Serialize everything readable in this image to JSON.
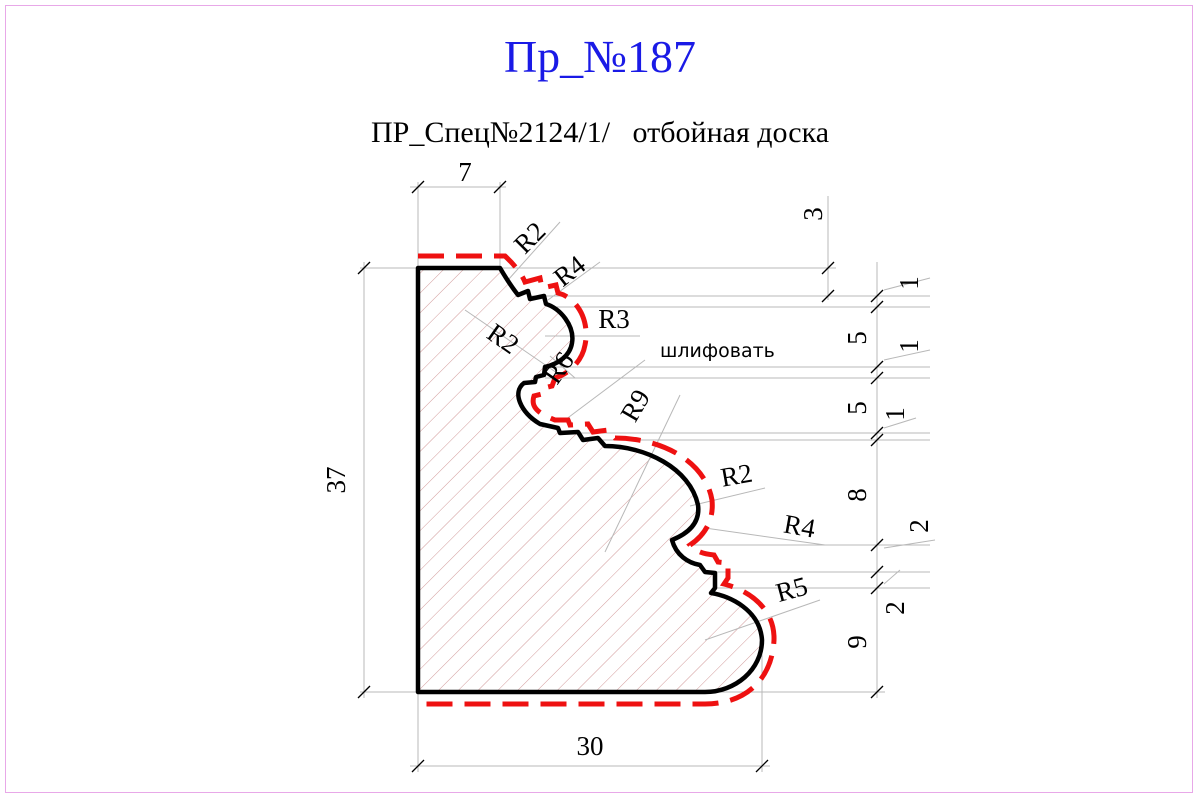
{
  "drawing": {
    "title": "Пр_№187",
    "subtitle": "ПР_Спец№2124/1/   отбойная доска",
    "colors": {
      "title": "#1a1ae6",
      "outline": "#000000",
      "allowance": "#ee1111",
      "hatch": "#d29a9a",
      "frame": "#e8a8e8"
    },
    "dimensions": {
      "top_width": "7",
      "overall_height": "37",
      "overall_width": "30",
      "right_stack": [
        "3",
        "1",
        "5",
        "1",
        "5",
        "1",
        "8",
        "2",
        "2",
        "9"
      ]
    },
    "radii": [
      "R2",
      "R4",
      "R3",
      "R2",
      "R6",
      "R9",
      "R2",
      "R4",
      "R5"
    ],
    "note": "шлифовать"
  }
}
